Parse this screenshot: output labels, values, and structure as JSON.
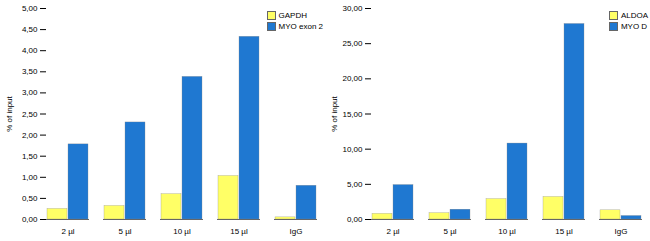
{
  "chart_data": [
    {
      "type": "bar",
      "categories": [
        "2 µl",
        "5 µl",
        "10 µl",
        "15 µl",
        "IgG"
      ],
      "series": [
        {
          "name": "GAPDH",
          "color": "#ffff66",
          "values": [
            0.25,
            0.32,
            0.6,
            1.03,
            0.05
          ]
        },
        {
          "name": "MYO exon 2",
          "color": "#1f78d1",
          "values": [
            1.78,
            2.3,
            3.38,
            4.33,
            0.8
          ]
        }
      ],
      "y_label": "% of input",
      "ylim": [
        0,
        5
      ],
      "yticks": [
        {
          "value": 0,
          "label": "0,00"
        },
        {
          "value": 0.5,
          "label": "0,50"
        },
        {
          "value": 1,
          "label": "1,00"
        },
        {
          "value": 1.5,
          "label": "1,50"
        },
        {
          "value": 2,
          "label": "2,00"
        },
        {
          "value": 2.5,
          "label": "2,50"
        },
        {
          "value": 3,
          "label": "3,00"
        },
        {
          "value": 3.5,
          "label": "3,50"
        },
        {
          "value": 4,
          "label": "4,00"
        },
        {
          "value": 4.5,
          "label": "4,50"
        },
        {
          "value": 5,
          "label": "5,00"
        }
      ],
      "legend": "upper right",
      "grid": false
    },
    {
      "type": "bar",
      "categories": [
        "2 µl",
        "5 µl",
        "10 µl",
        "15 µl",
        "IgG"
      ],
      "series": [
        {
          "name": "ALDOA",
          "color": "#ffff66",
          "values": [
            0.8,
            0.9,
            2.9,
            3.2,
            1.3
          ]
        },
        {
          "name": "MYO D",
          "color": "#1f78d1",
          "values": [
            4.9,
            1.4,
            10.8,
            27.8,
            0.5
          ]
        }
      ],
      "y_label": "% of input",
      "ylim": [
        0,
        30
      ],
      "yticks": [
        {
          "value": 0,
          "label": "0,00"
        },
        {
          "value": 5,
          "label": "5,00"
        },
        {
          "value": 10,
          "label": "10,00"
        },
        {
          "value": 15,
          "label": "15,00"
        },
        {
          "value": 20,
          "label": "20,00"
        },
        {
          "value": 25,
          "label": "25,00"
        },
        {
          "value": 30,
          "label": "30,00"
        }
      ],
      "legend": "upper right",
      "grid": false
    }
  ]
}
